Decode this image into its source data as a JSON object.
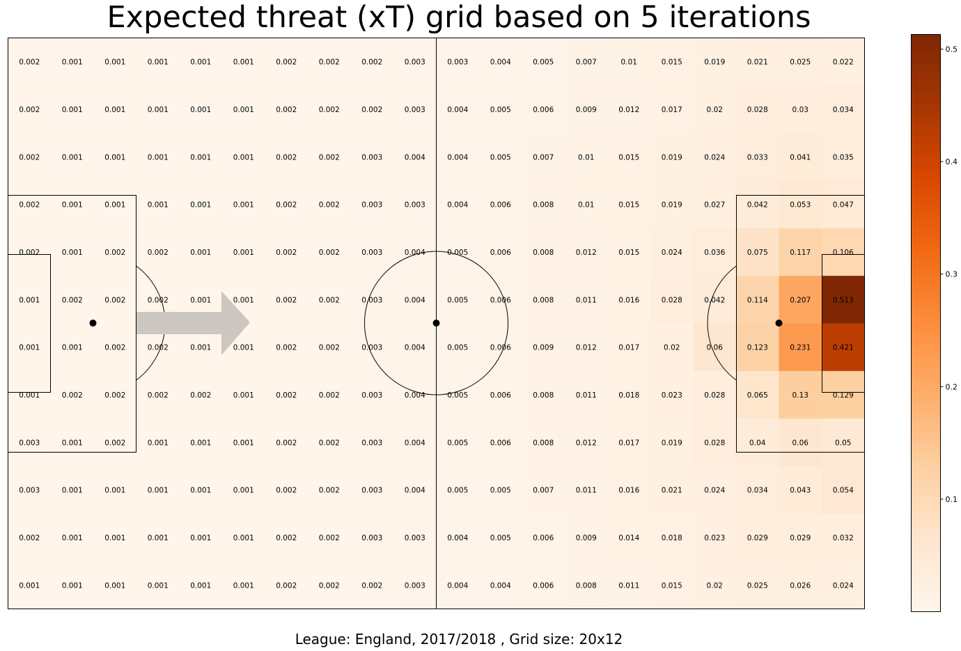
{
  "title": "Expected threat (xT) grid based on 5 iterations",
  "footer": "League: England, 2017/2018 , Grid size: 20x12",
  "colorbar": {
    "ticks": [
      0.1,
      0.2,
      0.3,
      0.4,
      0.5
    ],
    "tick_labels": [
      "0.1",
      "0.2",
      "0.3",
      "0.4",
      "0.5"
    ],
    "min": 0.0,
    "max": 0.513,
    "colormap": "Oranges",
    "color_low": "#fff5eb",
    "color_high": "#7f2704"
  },
  "chart_data": {
    "type": "heatmap",
    "title": "Expected threat (xT) grid based on 5 iterations",
    "columns": 20,
    "rows": 12,
    "values": [
      [
        0.002,
        0.001,
        0.001,
        0.001,
        0.001,
        0.001,
        0.002,
        0.002,
        0.002,
        0.003,
        0.003,
        0.004,
        0.005,
        0.007,
        0.01,
        0.015,
        0.019,
        0.021,
        0.025,
        0.022
      ],
      [
        0.002,
        0.001,
        0.001,
        0.001,
        0.001,
        0.001,
        0.002,
        0.002,
        0.002,
        0.003,
        0.004,
        0.005,
        0.006,
        0.009,
        0.012,
        0.017,
        0.02,
        0.028,
        0.03,
        0.034
      ],
      [
        0.002,
        0.001,
        0.001,
        0.001,
        0.001,
        0.001,
        0.002,
        0.002,
        0.003,
        0.004,
        0.004,
        0.005,
        0.007,
        0.01,
        0.015,
        0.019,
        0.024,
        0.033,
        0.041,
        0.035
      ],
      [
        0.002,
        0.001,
        0.001,
        0.001,
        0.001,
        0.001,
        0.002,
        0.002,
        0.003,
        0.003,
        0.004,
        0.006,
        0.008,
        0.01,
        0.015,
        0.019,
        0.027,
        0.042,
        0.053,
        0.047
      ],
      [
        0.002,
        0.001,
        0.002,
        0.002,
        0.001,
        0.001,
        0.002,
        0.002,
        0.003,
        0.004,
        0.005,
        0.006,
        0.008,
        0.012,
        0.015,
        0.024,
        0.036,
        0.075,
        0.117,
        0.106
      ],
      [
        0.001,
        0.002,
        0.002,
        0.002,
        0.001,
        0.001,
        0.002,
        0.002,
        0.003,
        0.004,
        0.005,
        0.006,
        0.008,
        0.011,
        0.016,
        0.028,
        0.042,
        0.114,
        0.207,
        0.513
      ],
      [
        0.001,
        0.001,
        0.002,
        0.002,
        0.001,
        0.001,
        0.002,
        0.002,
        0.003,
        0.004,
        0.005,
        0.006,
        0.009,
        0.012,
        0.017,
        0.02,
        0.06,
        0.123,
        0.231,
        0.421
      ],
      [
        0.001,
        0.002,
        0.002,
        0.002,
        0.002,
        0.001,
        0.002,
        0.002,
        0.003,
        0.004,
        0.005,
        0.006,
        0.008,
        0.011,
        0.018,
        0.023,
        0.028,
        0.065,
        0.13,
        0.129
      ],
      [
        0.003,
        0.001,
        0.002,
        0.001,
        0.001,
        0.001,
        0.002,
        0.002,
        0.003,
        0.004,
        0.005,
        0.006,
        0.008,
        0.012,
        0.017,
        0.019,
        0.028,
        0.04,
        0.06,
        0.05
      ],
      [
        0.003,
        0.001,
        0.001,
        0.001,
        0.001,
        0.001,
        0.002,
        0.002,
        0.003,
        0.004,
        0.005,
        0.005,
        0.007,
        0.011,
        0.016,
        0.021,
        0.024,
        0.034,
        0.043,
        0.054
      ],
      [
        0.002,
        0.001,
        0.001,
        0.001,
        0.001,
        0.001,
        0.002,
        0.002,
        0.003,
        0.003,
        0.004,
        0.005,
        0.006,
        0.009,
        0.014,
        0.018,
        0.023,
        0.029,
        0.029,
        0.032
      ],
      [
        0.001,
        0.001,
        0.001,
        0.001,
        0.001,
        0.001,
        0.002,
        0.002,
        0.002,
        0.003,
        0.004,
        0.004,
        0.006,
        0.008,
        0.011,
        0.015,
        0.02,
        0.025,
        0.026,
        0.024
      ]
    ],
    "value_labels": [
      [
        "0.002",
        "0.001",
        "0.001",
        "0.001",
        "0.001",
        "0.001",
        "0.002",
        "0.002",
        "0.002",
        "0.003",
        "0.003",
        "0.004",
        "0.005",
        "0.007",
        "0.01",
        "0.015",
        "0.019",
        "0.021",
        "0.025",
        "0.022"
      ],
      [
        "0.002",
        "0.001",
        "0.001",
        "0.001",
        "0.001",
        "0.001",
        "0.002",
        "0.002",
        "0.002",
        "0.003",
        "0.004",
        "0.005",
        "0.006",
        "0.009",
        "0.012",
        "0.017",
        "0.02",
        "0.028",
        "0.03",
        "0.034"
      ],
      [
        "0.002",
        "0.001",
        "0.001",
        "0.001",
        "0.001",
        "0.001",
        "0.002",
        "0.002",
        "0.003",
        "0.004",
        "0.004",
        "0.005",
        "0.007",
        "0.01",
        "0.015",
        "0.019",
        "0.024",
        "0.033",
        "0.041",
        "0.035"
      ],
      [
        "0.002",
        "0.001",
        "0.001",
        "0.001",
        "0.001",
        "0.001",
        "0.002",
        "0.002",
        "0.003",
        "0.003",
        "0.004",
        "0.006",
        "0.008",
        "0.01",
        "0.015",
        "0.019",
        "0.027",
        "0.042",
        "0.053",
        "0.047"
      ],
      [
        "0.002",
        "0.001",
        "0.002",
        "0.002",
        "0.001",
        "0.001",
        "0.002",
        "0.002",
        "0.003",
        "0.004",
        "0.005",
        "0.006",
        "0.008",
        "0.012",
        "0.015",
        "0.024",
        "0.036",
        "0.075",
        "0.117",
        "0.106"
      ],
      [
        "0.001",
        "0.002",
        "0.002",
        "0.002",
        "0.001",
        "0.001",
        "0.002",
        "0.002",
        "0.003",
        "0.004",
        "0.005",
        "0.006",
        "0.008",
        "0.011",
        "0.016",
        "0.028",
        "0.042",
        "0.114",
        "0.207",
        "0.513"
      ],
      [
        "0.001",
        "0.001",
        "0.002",
        "0.002",
        "0.001",
        "0.001",
        "0.002",
        "0.002",
        "0.003",
        "0.004",
        "0.005",
        "0.006",
        "0.009",
        "0.012",
        "0.017",
        "0.02",
        "0.06",
        "0.123",
        "0.231",
        "0.421"
      ],
      [
        "0.001",
        "0.002",
        "0.002",
        "0.002",
        "0.002",
        "0.001",
        "0.002",
        "0.002",
        "0.003",
        "0.004",
        "0.005",
        "0.006",
        "0.008",
        "0.011",
        "0.018",
        "0.023",
        "0.028",
        "0.065",
        "0.13",
        "0.129"
      ],
      [
        "0.003",
        "0.001",
        "0.002",
        "0.001",
        "0.001",
        "0.001",
        "0.002",
        "0.002",
        "0.003",
        "0.004",
        "0.005",
        "0.006",
        "0.008",
        "0.012",
        "0.017",
        "0.019",
        "0.028",
        "0.04",
        "0.06",
        "0.05"
      ],
      [
        "0.003",
        "0.001",
        "0.001",
        "0.001",
        "0.001",
        "0.001",
        "0.002",
        "0.002",
        "0.003",
        "0.004",
        "0.005",
        "0.005",
        "0.007",
        "0.011",
        "0.016",
        "0.021",
        "0.024",
        "0.034",
        "0.043",
        "0.054"
      ],
      [
        "0.002",
        "0.001",
        "0.001",
        "0.001",
        "0.001",
        "0.001",
        "0.002",
        "0.002",
        "0.003",
        "0.003",
        "0.004",
        "0.005",
        "0.006",
        "0.009",
        "0.014",
        "0.018",
        "0.023",
        "0.029",
        "0.029",
        "0.032"
      ],
      [
        "0.001",
        "0.001",
        "0.001",
        "0.001",
        "0.001",
        "0.001",
        "0.002",
        "0.002",
        "0.002",
        "0.003",
        "0.004",
        "0.004",
        "0.006",
        "0.008",
        "0.011",
        "0.015",
        "0.02",
        "0.025",
        "0.026",
        "0.024"
      ]
    ],
    "attack_direction": "left-to-right",
    "arrow_color": "#ccc7c1"
  }
}
